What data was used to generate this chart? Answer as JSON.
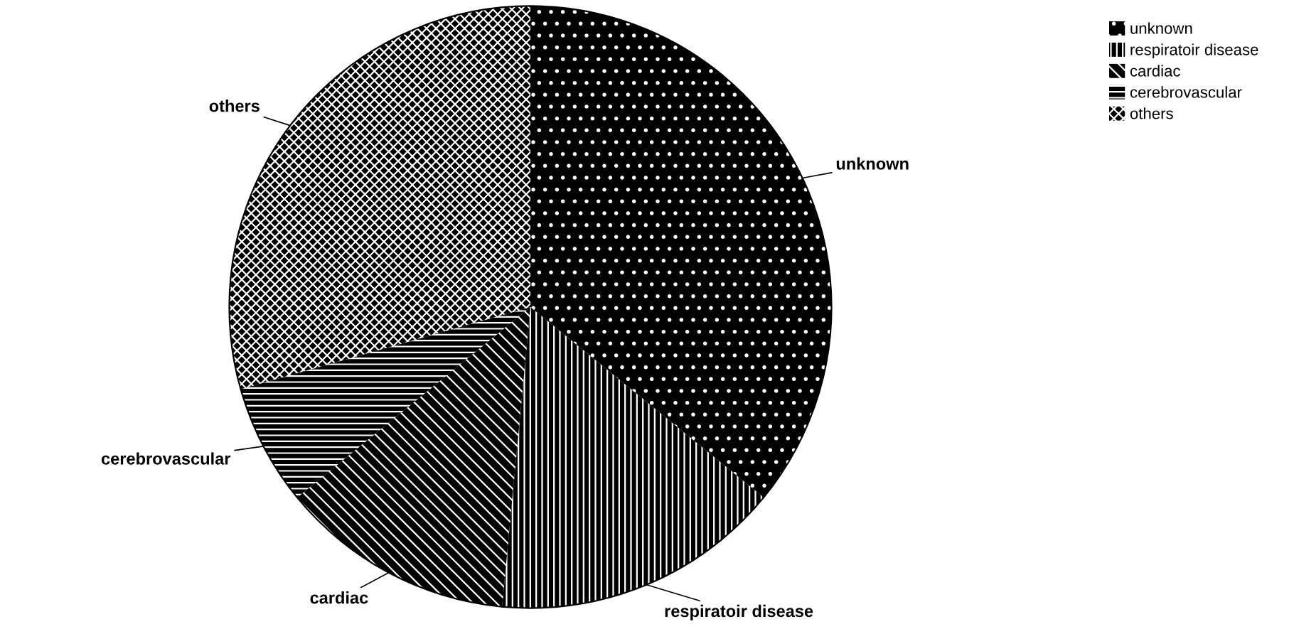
{
  "chart_data": {
    "type": "pie",
    "categories": [
      "unknown",
      "respiratoir disease",
      "cardiac",
      "cerebrovascular",
      "others"
    ],
    "values": [
      35.9,
      15.6,
      12.6,
      6.5,
      29.4
    ],
    "colors": [
      "#000000",
      "#000000",
      "#000000",
      "#000000",
      "#000000"
    ],
    "legend": "top right"
  }
}
